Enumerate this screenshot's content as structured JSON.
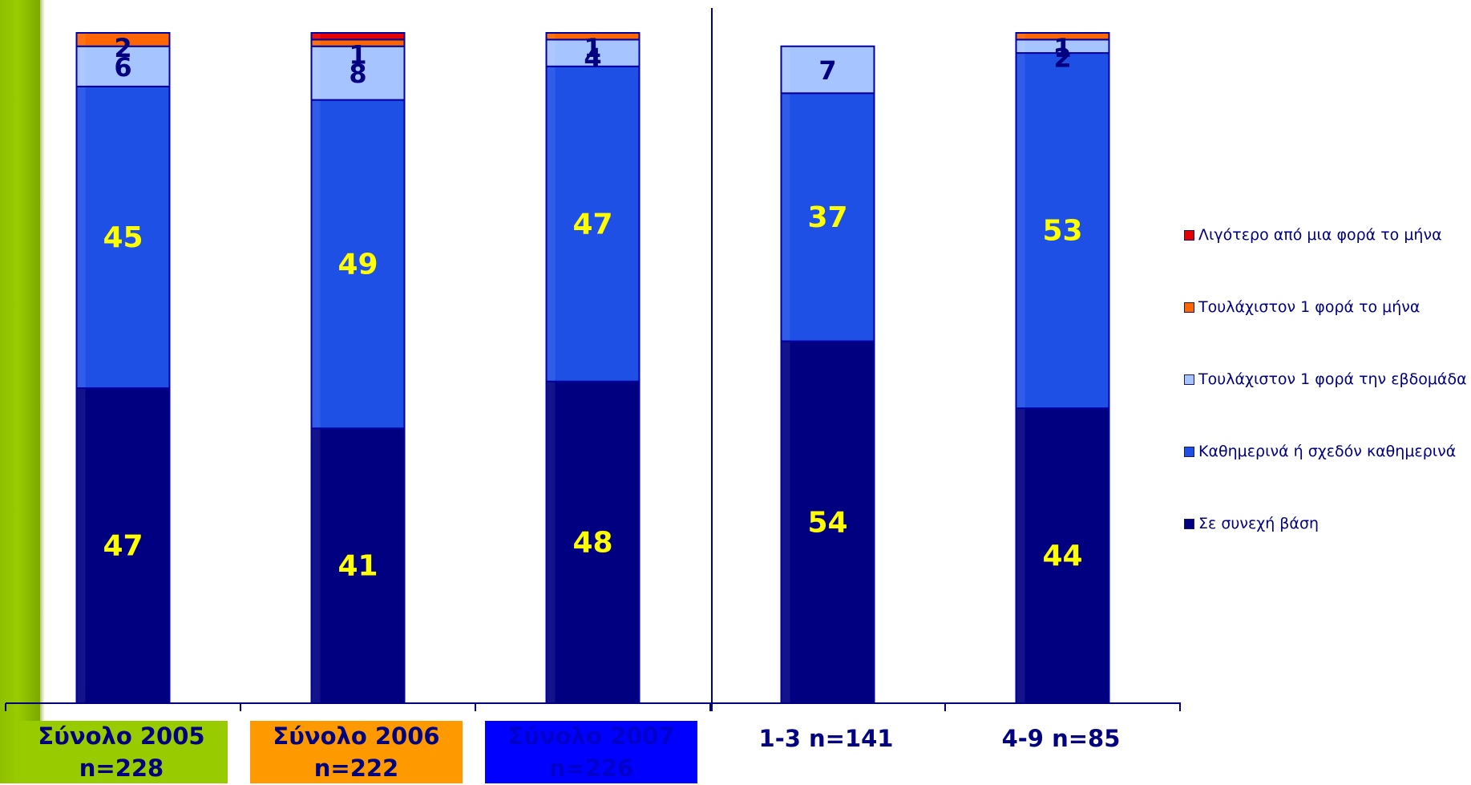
{
  "chart_data": {
    "type": "bar",
    "stacked": true,
    "categories": [
      {
        "line1": "Σύνολο 2005",
        "line2": "n=228",
        "box_color": "#99cc00",
        "text_color": "#000080"
      },
      {
        "line1": "Σύνολο 2006",
        "line2": "n=222",
        "box_color": "#ff9900",
        "text_color": "#000080"
      },
      {
        "line1": "Σύνολο 2007",
        "line2": "n=226",
        "box_color": "#0000ff",
        "text_color": "#0000cc"
      },
      {
        "line1": "1-3 n=141",
        "line2": "",
        "box_color": "",
        "text_color": "#000080"
      },
      {
        "line1": "4-9 n=85",
        "line2": "",
        "box_color": "",
        "text_color": "#000080"
      }
    ],
    "series": [
      {
        "name": "Σε συνεχή βάση",
        "color": "#000080",
        "label_color": "#ffff00",
        "values": [
          47,
          41,
          48,
          54,
          44
        ]
      },
      {
        "name": "Καθημερινά ή σχεδόν καθημερινά",
        "color": "#1f50e6",
        "label_color": "#ffff00",
        "values": [
          45,
          49,
          47,
          37,
          53
        ]
      },
      {
        "name": "Τουλάχιστον 1 φορά την εβδομάδα",
        "color": "#a6c4ff",
        "label_color": "#000080",
        "values": [
          6,
          8,
          4,
          7,
          2
        ]
      },
      {
        "name": "Τουλάχιστον 1 φορά το μήνα",
        "color": "#ff6600",
        "label_color": "#000080",
        "values": [
          2,
          1,
          1,
          0,
          1
        ]
      },
      {
        "name": "Λιγότερο από μια φορά το μήνα",
        "color": "#e60000",
        "label_color": "#000080",
        "values": [
          0,
          1,
          0,
          0,
          0
        ]
      }
    ],
    "data_labels": [
      [
        "47",
        "41",
        "48",
        "54",
        "44"
      ],
      [
        "45",
        "49",
        "47",
        "37",
        "53"
      ],
      [
        "6",
        "8",
        "4",
        "7",
        "2"
      ],
      [
        "2",
        "1",
        "1",
        "",
        "1"
      ],
      [
        "",
        "",
        "",
        "",
        ""
      ]
    ],
    "group_divider_after_category": 2,
    "ylim": [
      0,
      100
    ],
    "legend_position": "right",
    "grid": false
  }
}
